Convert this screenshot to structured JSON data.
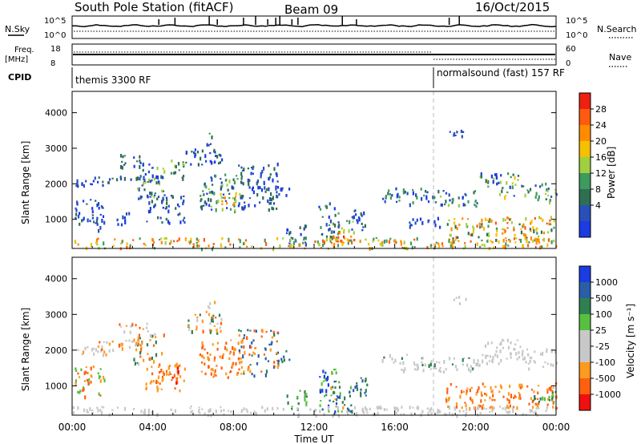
{
  "header": {
    "station": "South Pole Station (fitACF)",
    "beam": "Beam 09",
    "date": "16/Oct/2015"
  },
  "strip": {
    "nsky_label": "N.Sky",
    "nsky_ticks": [
      "10^5",
      "10^0"
    ],
    "nsearch_label": "N.Search",
    "nsearch_ticks": [
      "10^5",
      "10^0"
    ],
    "freq_label": "Freq.",
    "freq_unit": "[MHz]",
    "freq_ticks": [
      "18",
      "8"
    ],
    "nave_label": "Nave",
    "nave_ticks": [
      "60",
      "0"
    ],
    "cpid_label": "CPID",
    "cpid_segments": [
      {
        "label": "themis 3300 RF",
        "start_hour": 0,
        "end_hour": 18.0
      },
      {
        "label": "normalsound (fast) 157 RF",
        "start_hour": 18.0,
        "end_hour": 24
      }
    ]
  },
  "xaxis": {
    "label": "Time UT",
    "ticks": [
      "00:00",
      "04:00",
      "08:00",
      "12:00",
      "16:00",
      "20:00",
      "00:00"
    ]
  },
  "colors": {
    "power": [
      "#1a3ce0",
      "#2850b8",
      "#2f6e52",
      "#3e9a5e",
      "#9fd040",
      "#f5c000",
      "#ff8c00",
      "#ff5a10",
      "#ee2010"
    ],
    "velocity": [
      "#f01010",
      "#ff6010",
      "#ff9a20",
      "#c8c8c8",
      "#c8c8c8",
      "#58c040",
      "#2f8050",
      "#2a5fa8",
      "#1a3ce0"
    ]
  },
  "power_scale": {
    "label": "Power [dB]",
    "ticks": [
      "28",
      "24",
      "20",
      "16",
      "12",
      "8",
      "4"
    ]
  },
  "velocity_scale": {
    "label": "Velocity [m s⁻¹]",
    "ticks": [
      "1000",
      "500",
      "100",
      "25",
      "-25",
      "-100",
      "-500",
      "-1000"
    ]
  },
  "chart_data": [
    {
      "type": "heatmap",
      "title": "",
      "xlabel": "Time UT",
      "ylabel": "Slant Range [km]",
      "xlim": [
        0,
        24
      ],
      "ylim": [
        180,
        4600
      ],
      "yticks": [
        "1000",
        "2000",
        "3000",
        "4000"
      ],
      "colorbar": "Power [dB]",
      "bands": [
        {
          "t0": 0.0,
          "t1": 1.8,
          "r0": 1950,
          "r1": 2150,
          "c": [
            0,
            1
          ]
        },
        {
          "t0": 1.0,
          "t1": 3.4,
          "r0": 2050,
          "r1": 2250,
          "c": [
            0,
            1,
            2
          ]
        },
        {
          "t0": 2.3,
          "t1": 3.8,
          "r0": 2500,
          "r1": 2850,
          "c": [
            0,
            2,
            3
          ]
        },
        {
          "t0": 3.0,
          "t1": 4.6,
          "r0": 1600,
          "r1": 2500,
          "c": [
            0,
            1,
            2,
            4
          ]
        },
        {
          "t0": 0.1,
          "t1": 1.6,
          "r0": 700,
          "r1": 1600,
          "c": [
            0,
            1,
            2
          ]
        },
        {
          "t0": 2.2,
          "t1": 2.8,
          "r0": 800,
          "r1": 1300,
          "c": [
            0,
            1
          ]
        },
        {
          "t0": 3.6,
          "t1": 5.6,
          "r0": 900,
          "r1": 1700,
          "c": [
            0,
            1,
            2
          ]
        },
        {
          "t0": 4.8,
          "t1": 5.5,
          "r0": 2100,
          "r1": 2700,
          "c": [
            2,
            3,
            4
          ]
        },
        {
          "t0": 5.6,
          "t1": 7.4,
          "r0": 2500,
          "r1": 3000,
          "c": [
            0,
            2
          ]
        },
        {
          "t0": 6.6,
          "t1": 7.1,
          "r0": 3100,
          "r1": 3450,
          "c": [
            1,
            2,
            3
          ]
        },
        {
          "t0": 6.3,
          "t1": 8.4,
          "r0": 1250,
          "r1": 2300,
          "c": [
            0,
            1,
            2,
            3,
            4
          ]
        },
        {
          "t0": 7.3,
          "t1": 8.2,
          "r0": 1400,
          "r1": 1800,
          "c": [
            4,
            5,
            6
          ]
        },
        {
          "t0": 8.2,
          "t1": 10.2,
          "r0": 1300,
          "r1": 2600,
          "c": [
            0,
            1,
            2
          ]
        },
        {
          "t0": 10.0,
          "t1": 10.8,
          "r0": 1700,
          "r1": 2000,
          "c": [
            0,
            1
          ]
        },
        {
          "t0": 10.6,
          "t1": 11.6,
          "r0": 300,
          "r1": 900,
          "c": [
            0,
            1,
            2
          ]
        },
        {
          "t0": 12.2,
          "t1": 13.2,
          "r0": 300,
          "r1": 1500,
          "c": [
            0,
            1,
            2,
            3
          ]
        },
        {
          "t0": 12.8,
          "t1": 14.0,
          "r0": 300,
          "r1": 1000,
          "c": [
            3,
            4,
            5,
            6,
            7
          ]
        },
        {
          "t0": 12.9,
          "t1": 13.5,
          "r0": 300,
          "r1": 600,
          "c": [
            6,
            7,
            8
          ]
        },
        {
          "t0": 13.8,
          "t1": 14.6,
          "r0": 700,
          "r1": 1300,
          "c": [
            0,
            1,
            2
          ]
        },
        {
          "t0": 15.3,
          "t1": 18.0,
          "r0": 1450,
          "r1": 1900,
          "c": [
            0,
            1,
            2,
            3
          ]
        },
        {
          "t0": 18.0,
          "t1": 20.2,
          "r0": 1400,
          "r1": 1850,
          "c": [
            0,
            1,
            2,
            3,
            4
          ]
        },
        {
          "t0": 20.2,
          "t1": 22.2,
          "r0": 1650,
          "r1": 2350,
          "c": [
            0,
            2,
            3,
            4,
            5
          ]
        },
        {
          "t0": 22.2,
          "t1": 24.0,
          "r0": 1500,
          "r1": 2050,
          "c": [
            1,
            2,
            3,
            4
          ]
        },
        {
          "t0": 16.5,
          "t1": 18.2,
          "r0": 800,
          "r1": 1100,
          "c": [
            0,
            1
          ]
        },
        {
          "t0": 18.5,
          "t1": 24.0,
          "r0": 400,
          "r1": 1100,
          "c": [
            2,
            3,
            4,
            5,
            6,
            7
          ]
        },
        {
          "t0": 18.7,
          "t1": 19.5,
          "r0": 3300,
          "r1": 3550,
          "c": [
            0,
            1
          ]
        },
        {
          "t0": 0.0,
          "t1": 24.0,
          "r0": 200,
          "r1": 500,
          "c": [
            4,
            5,
            6,
            7,
            3
          ]
        }
      ]
    },
    {
      "type": "heatmap",
      "title": "",
      "xlabel": "Time UT",
      "ylabel": "Slant Range [km]",
      "xlim": [
        0,
        24
      ],
      "ylim": [
        180,
        4600
      ],
      "yticks": [
        "1000",
        "2000",
        "3000",
        "4000"
      ],
      "colorbar": "Velocity [m s⁻¹]",
      "bands": [
        {
          "t0": 0.0,
          "t1": 1.8,
          "r0": 1900,
          "r1": 2150,
          "c": [
            3,
            3,
            2
          ]
        },
        {
          "t0": 1.0,
          "t1": 3.6,
          "r0": 2000,
          "r1": 2300,
          "c": [
            3,
            2,
            1
          ]
        },
        {
          "t0": 2.3,
          "t1": 3.8,
          "r0": 2500,
          "r1": 2850,
          "c": [
            1,
            2,
            3
          ]
        },
        {
          "t0": 3.0,
          "t1": 4.6,
          "r0": 1600,
          "r1": 2500,
          "c": [
            1,
            2,
            3,
            6
          ]
        },
        {
          "t0": 0.1,
          "t1": 1.6,
          "r0": 700,
          "r1": 1600,
          "c": [
            1,
            2,
            5
          ]
        },
        {
          "t0": 3.6,
          "t1": 5.6,
          "r0": 900,
          "r1": 1700,
          "c": [
            1,
            2
          ]
        },
        {
          "t0": 4.9,
          "t1": 5.4,
          "r0": 1100,
          "r1": 1600,
          "c": [
            0,
            1
          ]
        },
        {
          "t0": 5.6,
          "t1": 7.4,
          "r0": 2500,
          "r1": 3050,
          "c": [
            1,
            2,
            3,
            6
          ]
        },
        {
          "t0": 6.6,
          "t1": 7.1,
          "r0": 3100,
          "r1": 3450,
          "c": [
            3,
            3,
            2
          ]
        },
        {
          "t0": 6.3,
          "t1": 8.4,
          "r0": 1250,
          "r1": 2300,
          "c": [
            1,
            2,
            2,
            1
          ]
        },
        {
          "t0": 8.2,
          "t1": 10.2,
          "r0": 1300,
          "r1": 2600,
          "c": [
            1,
            2,
            6,
            7
          ]
        },
        {
          "t0": 10.0,
          "t1": 10.8,
          "r0": 1700,
          "r1": 2000,
          "c": [
            6,
            7
          ]
        },
        {
          "t0": 10.6,
          "t1": 11.6,
          "r0": 300,
          "r1": 900,
          "c": [
            6,
            5
          ]
        },
        {
          "t0": 12.2,
          "t1": 13.2,
          "r0": 300,
          "r1": 1500,
          "c": [
            6,
            7,
            8,
            5
          ]
        },
        {
          "t0": 12.8,
          "t1": 14.0,
          "r0": 300,
          "r1": 1000,
          "c": [
            6,
            7,
            5,
            2
          ]
        },
        {
          "t0": 13.8,
          "t1": 14.6,
          "r0": 700,
          "r1": 1300,
          "c": [
            6,
            7
          ]
        },
        {
          "t0": 15.3,
          "t1": 18.0,
          "r0": 1450,
          "r1": 1900,
          "c": [
            3,
            4,
            6
          ]
        },
        {
          "t0": 18.0,
          "t1": 20.2,
          "r0": 1400,
          "r1": 1850,
          "c": [
            3,
            4,
            3,
            6
          ]
        },
        {
          "t0": 20.2,
          "t1": 22.2,
          "r0": 1650,
          "r1": 2350,
          "c": [
            3,
            4,
            3
          ]
        },
        {
          "t0": 22.2,
          "t1": 24.0,
          "r0": 1500,
          "r1": 2050,
          "c": [
            3,
            4
          ]
        },
        {
          "t0": 18.5,
          "t1": 24.0,
          "r0": 400,
          "r1": 1100,
          "c": [
            1,
            2,
            1,
            2
          ]
        },
        {
          "t0": 22.8,
          "t1": 24.0,
          "r0": 500,
          "r1": 900,
          "c": [
            5,
            6
          ]
        },
        {
          "t0": 18.7,
          "t1": 19.5,
          "r0": 3300,
          "r1": 3550,
          "c": [
            3,
            4
          ]
        },
        {
          "t0": 0.0,
          "t1": 24.0,
          "r0": 200,
          "r1": 450,
          "c": [
            3,
            4,
            3
          ]
        }
      ]
    }
  ]
}
